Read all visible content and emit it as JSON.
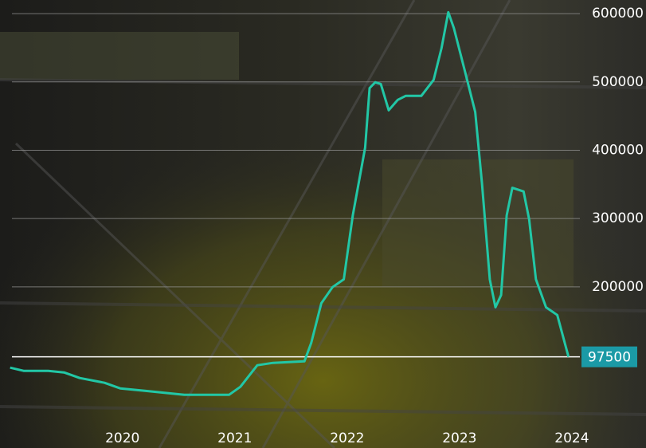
{
  "chart_data": {
    "type": "line",
    "x": [
      2019.0,
      2019.12,
      2019.34,
      2019.48,
      2019.62,
      2019.84,
      2019.98,
      2020.2,
      2020.55,
      2020.95,
      2021.05,
      2021.2,
      2021.34,
      2021.62,
      2021.68,
      2021.77,
      2021.87,
      2021.97,
      2022.05,
      2022.16,
      2022.2,
      2022.25,
      2022.3,
      2022.37,
      2022.45,
      2022.52,
      2022.66,
      2022.77,
      2022.84,
      2022.9,
      2022.95,
      2023.05,
      2023.14,
      2023.2,
      2023.27,
      2023.32,
      2023.37,
      2023.42,
      2023.47,
      2023.57,
      2023.62,
      2023.68,
      2023.77,
      2023.87,
      2023.97
    ],
    "series": [
      {
        "color": "#22c7a6",
        "values": [
          81700,
          77000,
          77000,
          74700,
          66500,
          59500,
          51300,
          47800,
          42000,
          42000,
          53700,
          85200,
          88700,
          91000,
          117900,
          176000,
          199500,
          211000,
          304600,
          403800,
          491000,
          499500,
          497000,
          458600,
          473800,
          479600,
          479600,
          503000,
          549600,
          602000,
          578800,
          514600,
          456000,
          351300,
          211000,
          170000,
          188000,
          304600,
          345000,
          339600,
          298800,
          211000,
          170000,
          158700,
          97500
        ]
      }
    ],
    "reference_line": 97500,
    "xlim": [
      2018.91,
      2024.66
    ],
    "xticks": [
      2020,
      2021,
      2022,
      2023,
      2024
    ],
    "ylim": [
      -36000,
      620000
    ],
    "yticks": [
      200000,
      300000,
      400000,
      500000,
      600000
    ],
    "grid": true
  }
}
